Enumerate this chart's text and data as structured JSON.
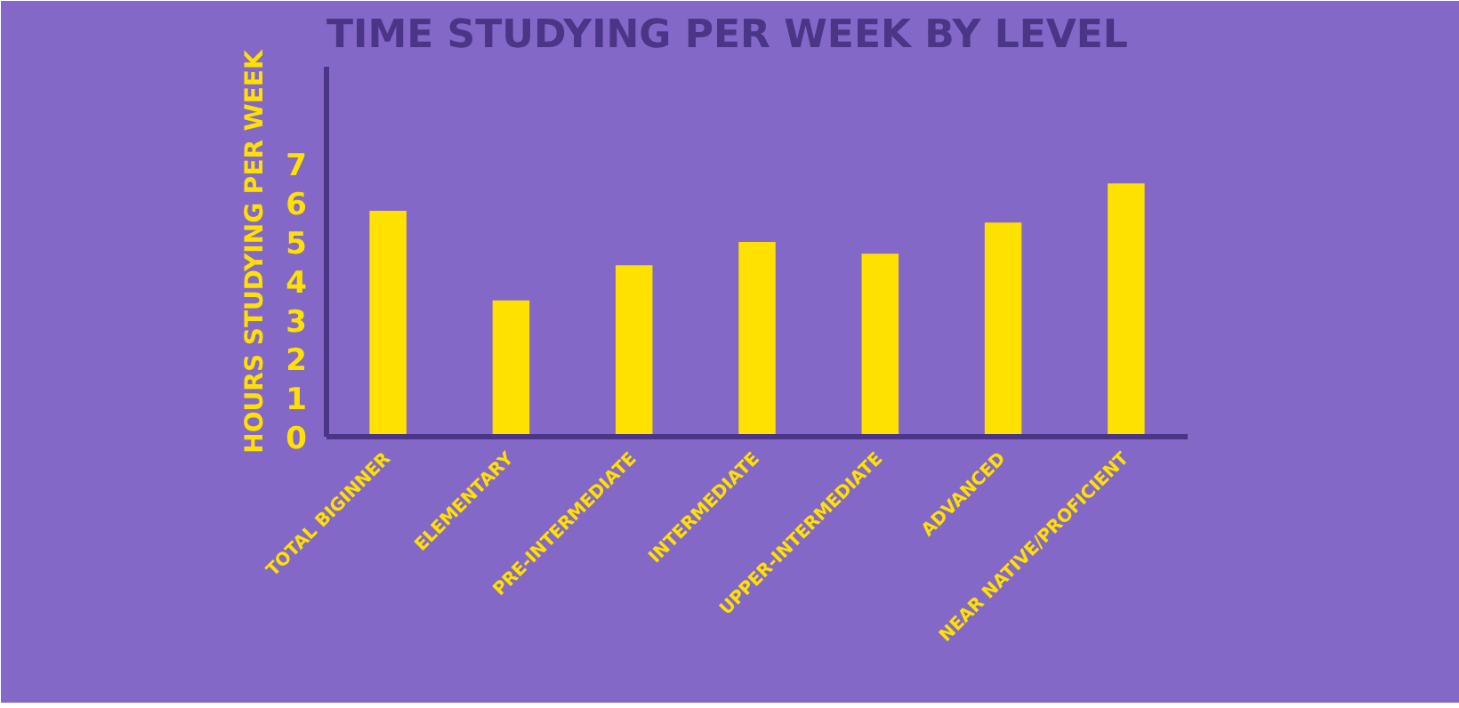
{
  "chart_data": {
    "type": "bar",
    "title": "TIME STUDYING PER WEEK BY LEVEL",
    "ylabel": "HOURS STUDYING PER WEEK",
    "categories": [
      "TOTAL BIGINNER",
      "ELEMENTARY",
      "PRE-INTERMEDIATE",
      "INTERMEDIATE",
      "UPPER-INTERMEDIATE",
      "ADVANCED",
      "NEAR NATIVE/PROFICIENT"
    ],
    "values": [
      5.8,
      3.5,
      4.4,
      5.0,
      4.7,
      5.5,
      6.5
    ],
    "color": "#ffe100",
    "ylim": [
      0,
      9.5
    ],
    "yticks": [
      0,
      1,
      2,
      3,
      4,
      5,
      6,
      7
    ],
    "grid": false
  }
}
